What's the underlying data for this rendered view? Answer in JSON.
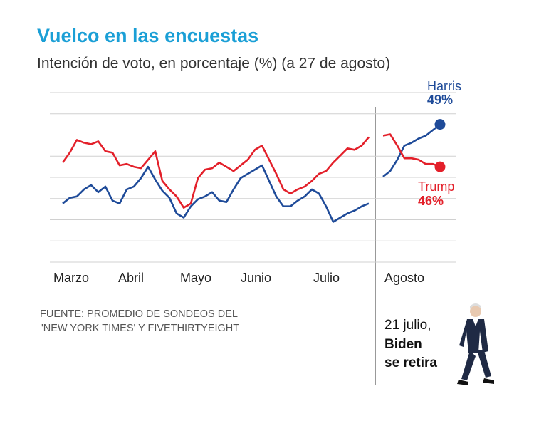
{
  "chart_data": {
    "type": "line",
    "title": "Vuelco en las encuestas",
    "subtitle": "Intención de voto, en porcentaje (%) (a 27 de agosto)",
    "month_labels": [
      "Marzo",
      "Abril",
      "Mayo",
      "Junio",
      "Julio",
      "Agosto"
    ],
    "ylim": [
      39.25,
      51.25
    ],
    "yticks": [
      39.25,
      40.75,
      42.25,
      43.75,
      45.25,
      46.75,
      48.25,
      49.75,
      51.25
    ],
    "grid": true,
    "series": [
      {
        "name": "Harris",
        "color": "#1f4b99",
        "values": [
          43.4,
          43.8,
          43.9,
          44.4,
          44.7,
          44.2,
          44.6,
          43.6,
          43.4,
          44.4,
          44.6,
          45.2,
          46.0,
          45.1,
          44.3,
          43.8,
          42.7,
          42.4,
          43.2,
          43.7,
          43.9,
          44.2,
          43.6,
          43.5,
          44.4,
          45.2,
          45.5,
          45.8,
          46.1,
          45.0,
          43.9,
          43.2,
          43.2,
          43.6,
          43.9,
          44.4,
          44.1,
          43.2,
          42.1,
          42.4,
          42.7,
          42.9,
          43.2,
          43.4,
          null,
          45.3,
          45.7,
          46.5,
          47.5,
          47.7,
          48.0,
          48.2,
          48.6,
          49
        ],
        "value_labels": [
          null,
          null,
          null,
          null,
          null,
          null,
          null,
          null,
          null,
          null,
          null,
          null,
          null,
          null,
          null,
          null,
          null,
          null,
          null,
          null,
          null,
          null,
          null,
          null,
          null,
          null,
          null,
          null,
          null,
          null,
          null,
          null,
          null,
          null,
          null,
          null,
          null,
          null,
          null,
          null,
          null,
          null,
          null,
          null,
          null,
          null,
          null,
          null,
          null,
          null,
          null,
          null,
          null,
          "49%"
        ]
      },
      {
        "name": "Trump",
        "color": "#e3202a",
        "values": [
          46.3,
          47.0,
          47.9,
          47.7,
          47.6,
          47.8,
          47.1,
          47.0,
          46.1,
          46.2,
          46.0,
          45.9,
          46.5,
          47.1,
          45.0,
          44.4,
          43.9,
          43.1,
          43.4,
          45.2,
          45.8,
          45.9,
          46.3,
          46.0,
          45.7,
          46.1,
          46.5,
          47.2,
          47.5,
          46.5,
          45.5,
          44.4,
          44.1,
          44.4,
          44.6,
          45.0,
          45.5,
          45.7,
          46.3,
          46.8,
          47.3,
          47.2,
          47.5,
          48.1,
          null,
          48.2,
          48.3,
          47.5,
          46.6,
          46.6,
          46.5,
          46.2,
          46.2,
          46
        ],
        "value_labels": [
          null,
          null,
          null,
          null,
          null,
          null,
          null,
          null,
          null,
          null,
          null,
          null,
          null,
          null,
          null,
          null,
          null,
          null,
          null,
          null,
          null,
          null,
          null,
          null,
          null,
          null,
          null,
          null,
          null,
          null,
          null,
          null,
          null,
          null,
          null,
          null,
          null,
          null,
          null,
          null,
          null,
          null,
          null,
          null,
          null,
          null,
          null,
          null,
          null,
          null,
          null,
          null,
          null,
          "46%"
        ]
      }
    ],
    "source": [
      "FUENTE: PROMEDIO DE SONDEOS DEL",
      "'NEW YORK TIMES' Y FIVETHIRTYEIGHT"
    ],
    "annotation": [
      "21 julio,",
      "Biden",
      "se retira"
    ]
  }
}
